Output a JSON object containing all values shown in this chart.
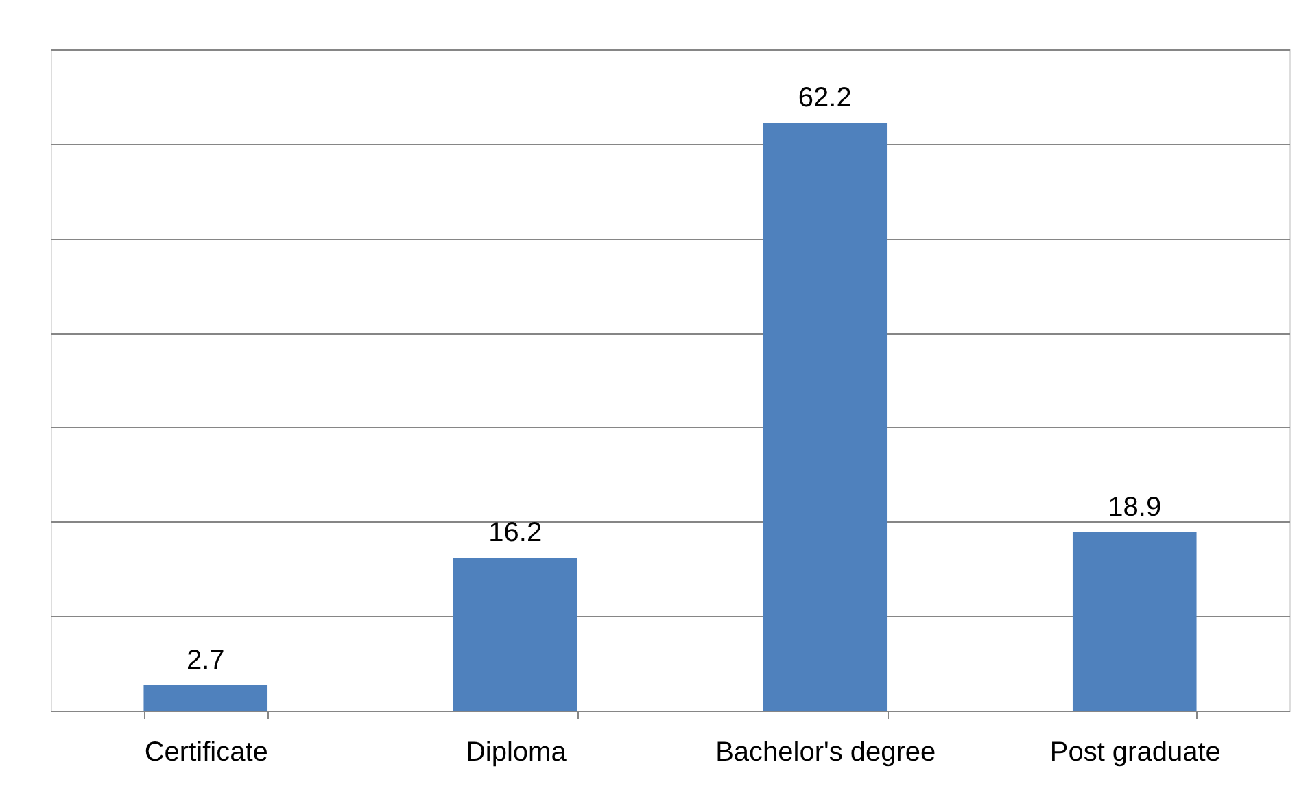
{
  "chart_data": {
    "type": "bar",
    "categories": [
      "Certificate",
      "Diploma",
      "Bachelor's degree",
      "Post graduate"
    ],
    "values": [
      2.7,
      16.2,
      62.2,
      18.9
    ],
    "color": "#4f81bd",
    "ylim": [
      0,
      70
    ],
    "yticks": [
      {
        "value": 0,
        "label": null
      },
      {
        "value": 10,
        "label": null
      },
      {
        "value": 20,
        "label": null
      },
      {
        "value": 30,
        "label": null
      },
      {
        "value": 40,
        "label": null
      },
      {
        "value": 50,
        "label": null
      },
      {
        "value": 60,
        "label": null
      },
      {
        "value": 70,
        "label": null
      }
    ],
    "grid": "y",
    "data_labels": true
  }
}
